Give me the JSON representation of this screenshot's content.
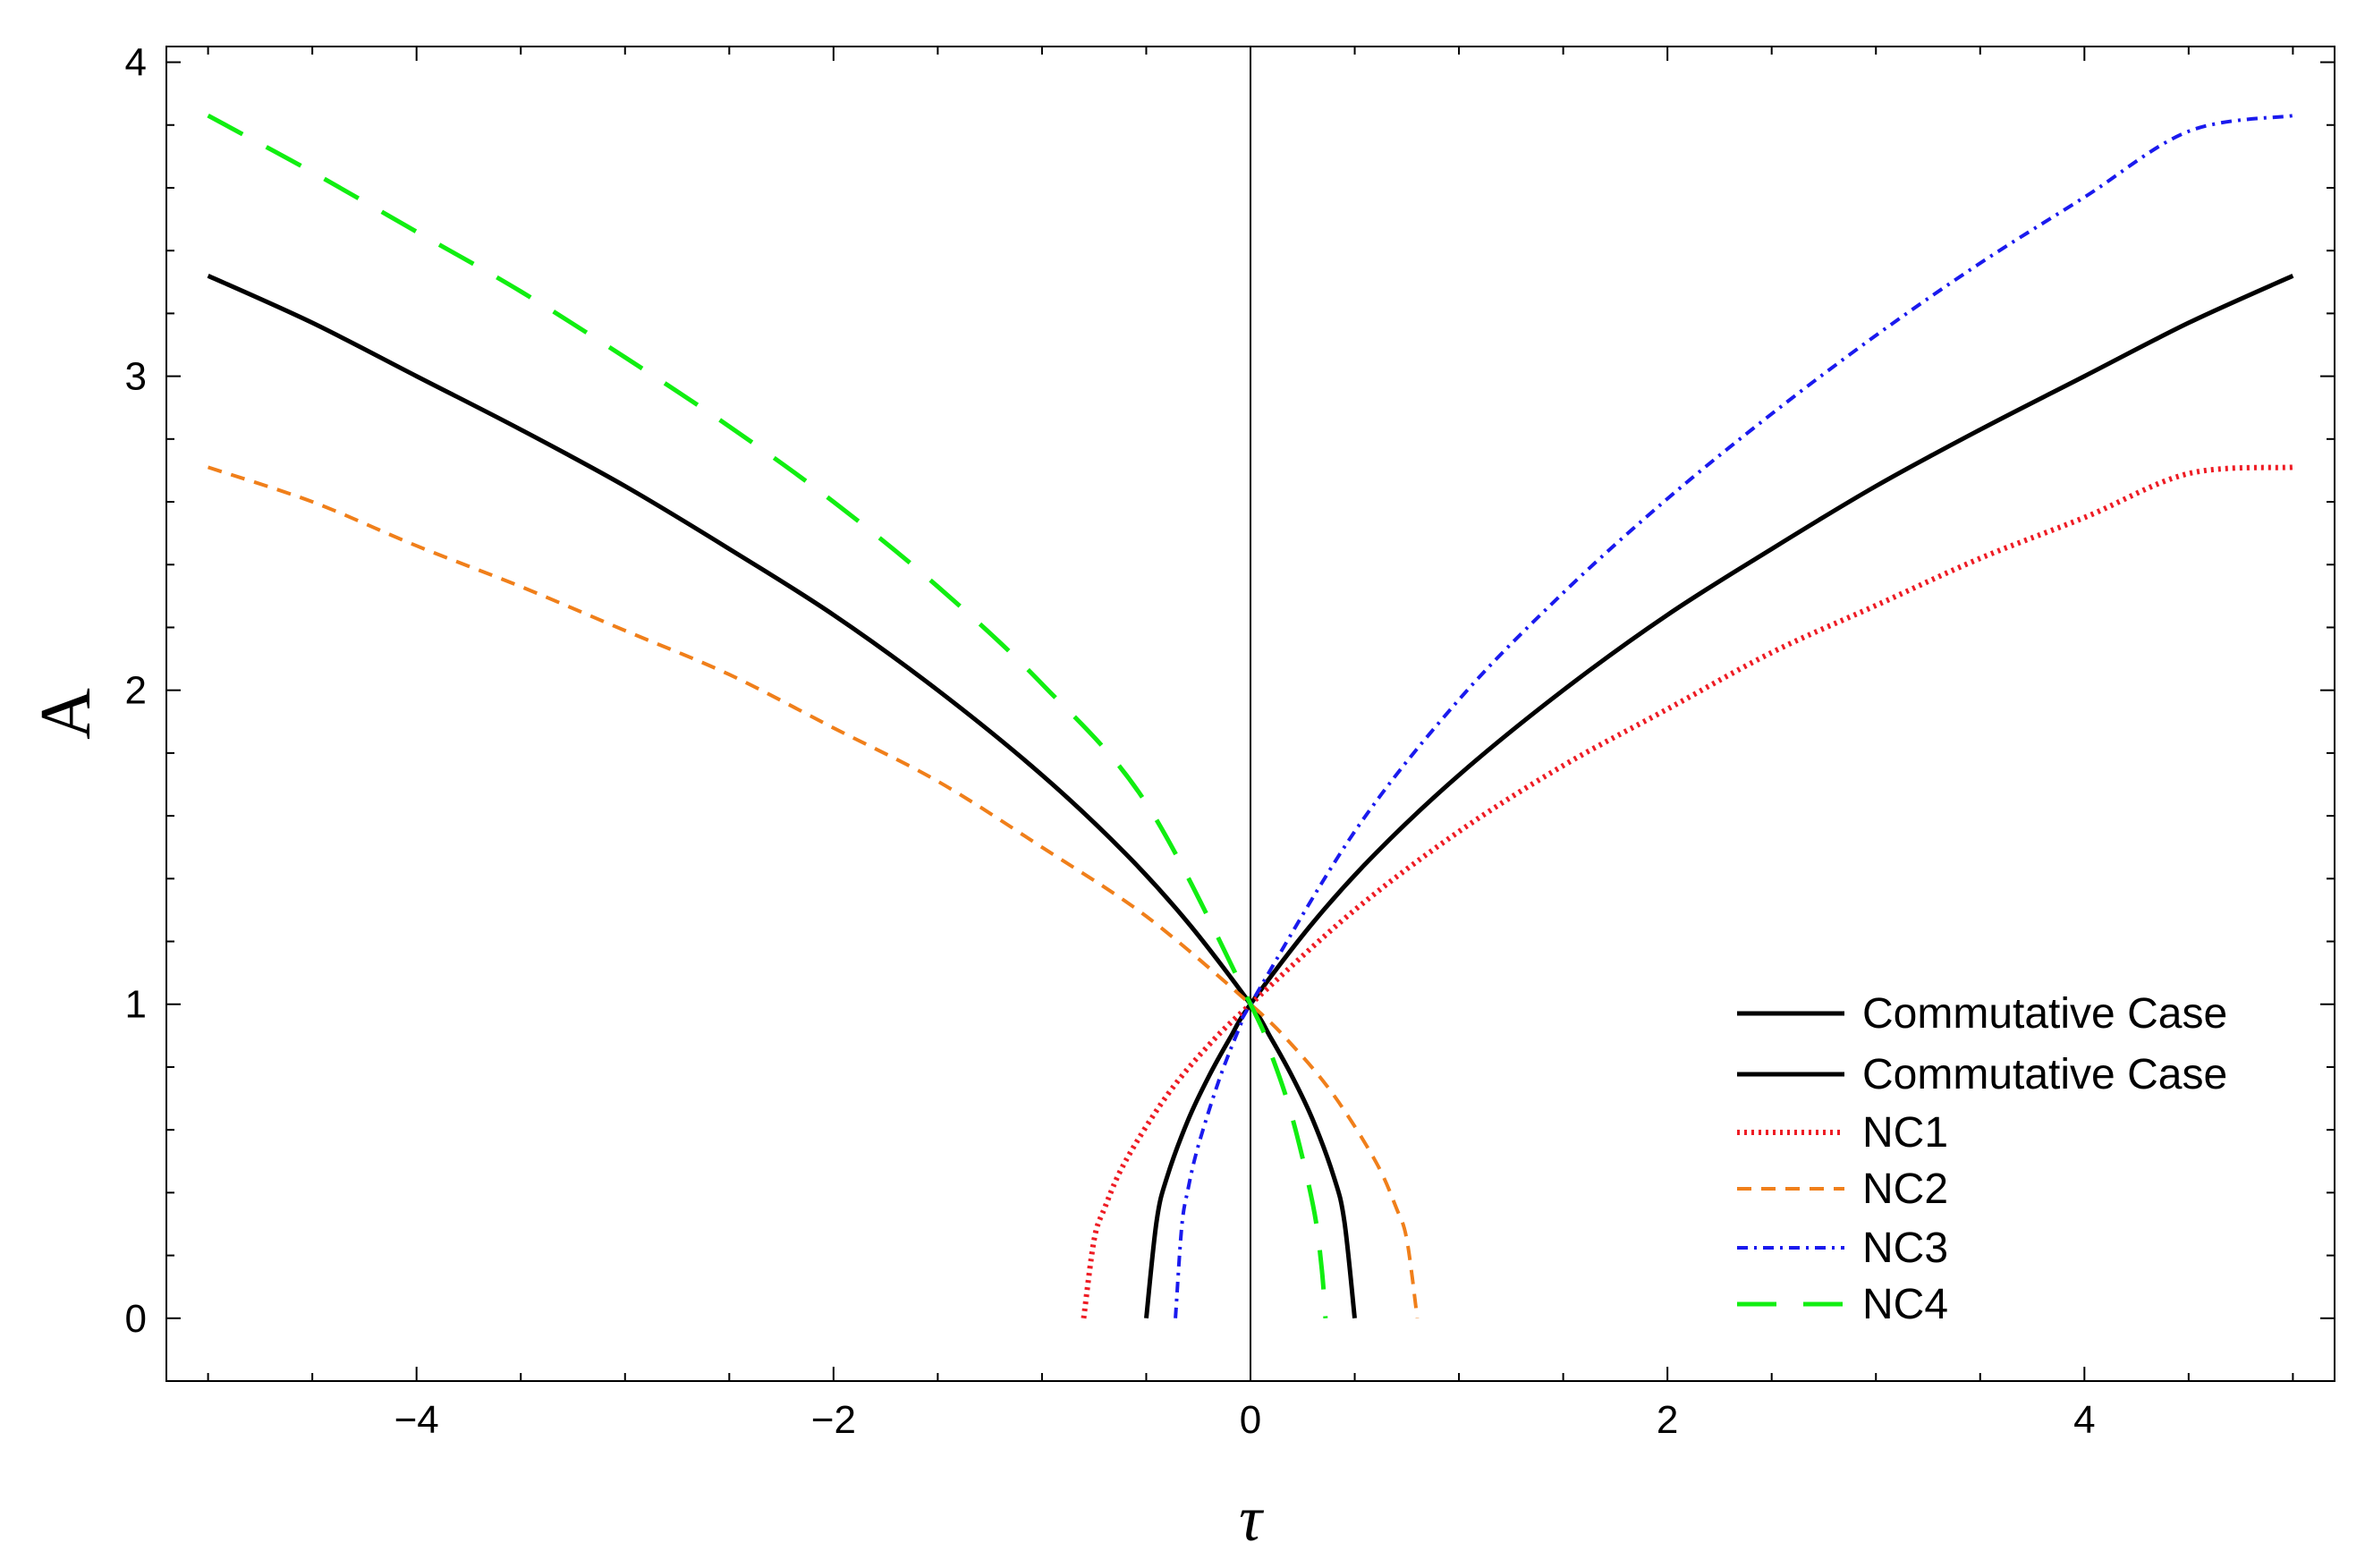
{
  "chart_data": {
    "type": "line",
    "xlabel": "τ",
    "ylabel": "A",
    "xlim": [
      -5.2,
      5.2
    ],
    "ylim": [
      -0.2,
      4.05
    ],
    "x_ticks": [
      -4,
      -2,
      0,
      2,
      4
    ],
    "x_tick_labels": [
      "−4",
      "−2",
      "0",
      "2",
      "4"
    ],
    "y_ticks": [
      0,
      1,
      2,
      3,
      4
    ],
    "y_tick_labels": [
      "0",
      "1",
      "2",
      "3",
      "4"
    ],
    "grid": false,
    "legend_position": "bottom-right",
    "series": [
      {
        "name": "Commutative Case",
        "color": "#000000",
        "style": "solid",
        "x": [
          -5.0,
          -4.5,
          -4.0,
          -3.5,
          -3.0,
          -2.5,
          -2.0,
          -1.5,
          -1.0,
          -0.6,
          -0.3,
          0.0,
          0.1,
          0.2,
          0.3,
          0.4,
          0.45,
          0.5
        ],
        "y": [
          3.32,
          3.17,
          3.0,
          2.83,
          2.65,
          2.45,
          2.24,
          2.0,
          1.73,
          1.48,
          1.26,
          1.0,
          0.89,
          0.77,
          0.63,
          0.45,
          0.31,
          0.0
        ]
      },
      {
        "name": "Commutative Case",
        "color": "#000000",
        "style": "solid",
        "x": [
          -0.5,
          -0.45,
          -0.4,
          -0.3,
          -0.2,
          -0.1,
          0.0,
          0.3,
          0.6,
          1.0,
          1.5,
          2.0,
          2.5,
          3.0,
          3.5,
          4.0,
          4.5,
          5.0
        ],
        "y": [
          0.0,
          0.31,
          0.45,
          0.63,
          0.77,
          0.89,
          1.0,
          1.26,
          1.48,
          1.73,
          2.0,
          2.24,
          2.45,
          2.65,
          2.83,
          3.0,
          3.17,
          3.32
        ]
      },
      {
        "name": "NC1",
        "color": "#ee1c24",
        "style": "dotted",
        "x": [
          -0.8,
          -0.75,
          -0.7,
          -0.6,
          -0.4,
          -0.2,
          0.0,
          0.5,
          1.0,
          1.5,
          2.0,
          2.5,
          3.0,
          3.5,
          4.0,
          4.5,
          5.0
        ],
        "y": [
          0.0,
          0.25,
          0.35,
          0.5,
          0.71,
          0.87,
          1.0,
          1.3,
          1.55,
          1.76,
          1.94,
          2.12,
          2.27,
          2.42,
          2.55,
          2.69,
          2.71
        ]
      },
      {
        "name": "NC2",
        "color": "#f07f1a",
        "style": "dashed",
        "x": [
          -5.0,
          -4.5,
          -4.0,
          -3.5,
          -3.0,
          -2.5,
          -2.0,
          -1.5,
          -1.0,
          -0.5,
          0.0,
          0.2,
          0.4,
          0.6,
          0.7,
          0.75,
          0.8
        ],
        "y": [
          2.71,
          2.6,
          2.46,
          2.33,
          2.19,
          2.05,
          1.88,
          1.71,
          1.5,
          1.28,
          1.0,
          0.87,
          0.71,
          0.5,
          0.35,
          0.25,
          0.0
        ]
      },
      {
        "name": "NC3",
        "color": "#1a1aee",
        "style": "dashdot",
        "x": [
          -0.36,
          -0.33,
          -0.3,
          -0.25,
          -0.15,
          -0.05,
          0.0,
          0.5,
          1.0,
          1.5,
          2.0,
          2.5,
          3.0,
          3.5,
          4.0,
          4.5,
          5.0
        ],
        "y": [
          0.0,
          0.29,
          0.41,
          0.55,
          0.76,
          0.93,
          1.0,
          1.55,
          1.97,
          2.31,
          2.61,
          2.88,
          3.13,
          3.36,
          3.57,
          3.78,
          3.83
        ]
      },
      {
        "name": "NC4",
        "color": "#11ee11",
        "style": "longdash",
        "x": [
          -5.0,
          -4.5,
          -4.0,
          -3.5,
          -3.0,
          -2.5,
          -2.0,
          -1.5,
          -1.0,
          -0.5,
          0.0,
          0.1,
          0.2,
          0.3,
          0.34,
          0.36
        ],
        "y": [
          3.83,
          3.65,
          3.46,
          3.27,
          3.06,
          2.84,
          2.6,
          2.33,
          2.02,
          1.64,
          1.0,
          0.84,
          0.64,
          0.36,
          0.17,
          0.0
        ]
      }
    ]
  }
}
